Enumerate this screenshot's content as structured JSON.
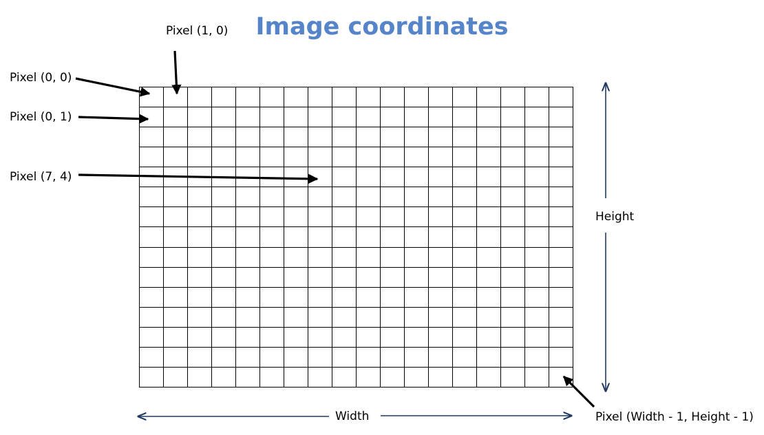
{
  "title": "Image coordinates",
  "colors": {
    "title": "#5585C8",
    "grid": "#000000",
    "dimension_arrows": "#1F3864",
    "pointer_arrows": "#000000",
    "text": "#000000"
  },
  "grid": {
    "columns": 18,
    "rows": 15
  },
  "labels": {
    "pixel_0_0": "Pixel (0, 0)",
    "pixel_1_0": "Pixel (1, 0)",
    "pixel_0_1": "Pixel (0, 1)",
    "pixel_7_4": "Pixel (7, 4)",
    "pixel_last": "Pixel (Width - 1, Height - 1)",
    "width": "Width",
    "height": "Height"
  }
}
